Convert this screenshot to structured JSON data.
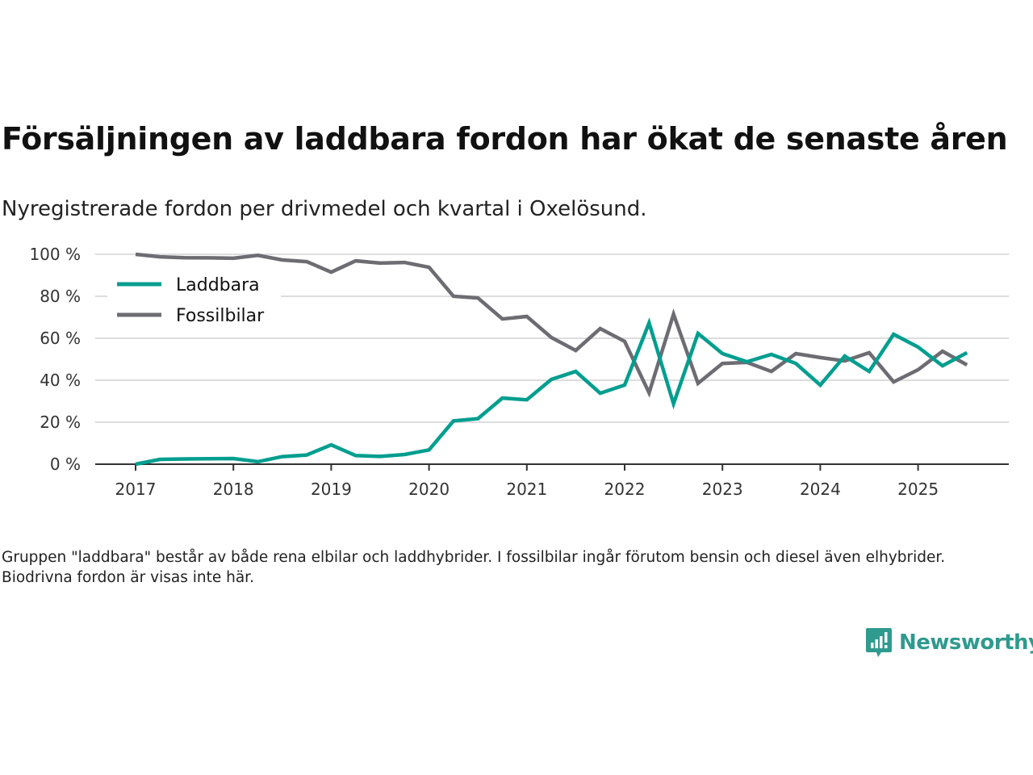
{
  "title": "Försäljningen av laddbara fordon har ökat de senaste åren",
  "subtitle": "Nyregistrerade fordon per drivmedel och kvartal i Oxelösund.",
  "note": "Gruppen \"laddbara\" består av både rena elbilar och laddhybrider. I fossilbilar ingår förutom bensin och diesel även elhybrider. Biodrivna fordon är visas inte här.",
  "brand": "Newsworthy",
  "colors": {
    "laddbara": "#009e8f",
    "fossil": "#6e6c73",
    "grid": "#dddddd",
    "axis": "#333333",
    "brand": "#2f9a8e"
  },
  "chart_data": {
    "type": "line",
    "title": "Försäljningen av laddbara fordon har ökat de senaste åren",
    "xlabel": "",
    "ylabel": "",
    "ylim": [
      0,
      100
    ],
    "yticks": [
      0,
      20,
      40,
      60,
      80,
      100
    ],
    "ytick_labels": [
      "0 %",
      "20 %",
      "40 %",
      "60 %",
      "80 %",
      "100 %"
    ],
    "xticks": [
      "2017",
      "2018",
      "2019",
      "2020",
      "2021",
      "2022",
      "2023",
      "2024",
      "2025"
    ],
    "x": [
      "2017Q1",
      "2017Q2",
      "2017Q3",
      "2017Q4",
      "2018Q1",
      "2018Q2",
      "2018Q3",
      "2018Q4",
      "2019Q1",
      "2019Q2",
      "2019Q3",
      "2019Q4",
      "2020Q1",
      "2020Q2",
      "2020Q3",
      "2020Q4",
      "2021Q1",
      "2021Q2",
      "2021Q3",
      "2021Q4",
      "2022Q1",
      "2022Q2",
      "2022Q3",
      "2022Q4",
      "2023Q1",
      "2023Q2",
      "2023Q3",
      "2023Q4",
      "2024Q1",
      "2024Q2",
      "2024Q3",
      "2024Q4",
      "2025Q1",
      "2025Q2",
      "2025Q3"
    ],
    "grid": true,
    "legend": "top-left",
    "series": [
      {
        "name": "Laddbara",
        "color": "#009e8f",
        "values": [
          0,
          2.3,
          2.5,
          2.6,
          2.7,
          1.2,
          3.6,
          4.4,
          9.2,
          4.1,
          3.7,
          4.6,
          6.8,
          20.6,
          21.7,
          31.5,
          30.7,
          40.4,
          44.2,
          33.8,
          37.7,
          67.3,
          28.8,
          62.3,
          52.7,
          48.8,
          52.3,
          48,
          37.7,
          51.5,
          44.2,
          61.9,
          55.8,
          46.9,
          53.1
        ]
      },
      {
        "name": "Fossilbilar",
        "color": "#6e6c73",
        "values": [
          100,
          98.8,
          98.4,
          98.3,
          98.1,
          99.5,
          97.3,
          96.5,
          91.5,
          96.9,
          95.8,
          96.1,
          93.8,
          80,
          79.2,
          69.2,
          70.4,
          60.4,
          54.2,
          64.6,
          58.5,
          34,
          71.5,
          38.5,
          48,
          48.5,
          44.2,
          52.7,
          50.8,
          49.2,
          53.1,
          39.2,
          45,
          53.8,
          47.3
        ]
      }
    ]
  }
}
